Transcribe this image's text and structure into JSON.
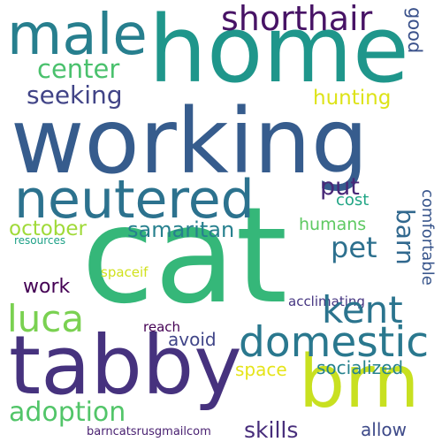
{
  "words": [
    {
      "id": "working",
      "text": "working",
      "color": "#365c8d"
    },
    {
      "id": "cat",
      "text": "cat",
      "color": "#35b779"
    },
    {
      "id": "home",
      "text": "home",
      "color": "#1f968b"
    },
    {
      "id": "tabby",
      "text": "tabby",
      "color": "#46327e"
    },
    {
      "id": "brn",
      "text": "brn",
      "color": "#c8e020"
    },
    {
      "id": "neutered",
      "text": "neutered",
      "color": "#2c728e"
    },
    {
      "id": "male",
      "text": "male",
      "color": "#277f8e"
    },
    {
      "id": "domestic",
      "text": "domestic",
      "color": "#2a788e"
    },
    {
      "id": "shorthair",
      "text": "shorthair",
      "color": "#471365"
    },
    {
      "id": "center",
      "text": "center",
      "color": "#4ac16d"
    },
    {
      "id": "seeking",
      "text": "seeking",
      "color": "#414487"
    },
    {
      "id": "hunting",
      "text": "hunting",
      "color": "#dde318"
    },
    {
      "id": "good",
      "text": "good",
      "color": "#3b528b"
    },
    {
      "id": "put",
      "text": "put",
      "color": "#482878"
    },
    {
      "id": "cost",
      "text": "cost",
      "color": "#21a585"
    },
    {
      "id": "comfortable",
      "text": "comfortable",
      "color": "#39568c"
    },
    {
      "id": "barn",
      "text": "barn",
      "color": "#31688e"
    },
    {
      "id": "pet",
      "text": "pet",
      "color": "#2d708e"
    },
    {
      "id": "october",
      "text": "october",
      "color": "#a0da39"
    },
    {
      "id": "samaritan",
      "text": "samaritan",
      "color": "#27808e"
    },
    {
      "id": "humans",
      "text": "humans",
      "color": "#5ec962"
    },
    {
      "id": "resources",
      "text": "resources",
      "color": "#1fa188"
    },
    {
      "id": "spaceif",
      "text": "spaceif",
      "color": "#d0e11c"
    },
    {
      "id": "acclimating",
      "text": "acclimating",
      "color": "#453581"
    },
    {
      "id": "luca",
      "text": "luca",
      "color": "#7ad151"
    },
    {
      "id": "work",
      "text": "work",
      "color": "#440154"
    },
    {
      "id": "kent",
      "text": "kent",
      "color": "#2b748e"
    },
    {
      "id": "reach",
      "text": "reach",
      "color": "#440154"
    },
    {
      "id": "avoid",
      "text": "avoid",
      "color": "#404588"
    },
    {
      "id": "space",
      "text": "space",
      "color": "#e5e419"
    },
    {
      "id": "socialized",
      "text": "socialized",
      "color": "#26828e"
    },
    {
      "id": "adoption",
      "text": "adoption",
      "color": "#52c569"
    },
    {
      "id": "skills",
      "text": "skills",
      "color": "#472d7b"
    },
    {
      "id": "allow",
      "text": "allow",
      "color": "#3e4a89"
    },
    {
      "id": "barncatsrusgmailcom",
      "text": "barncatsrusgmailcom",
      "color": "#481f70"
    }
  ]
}
